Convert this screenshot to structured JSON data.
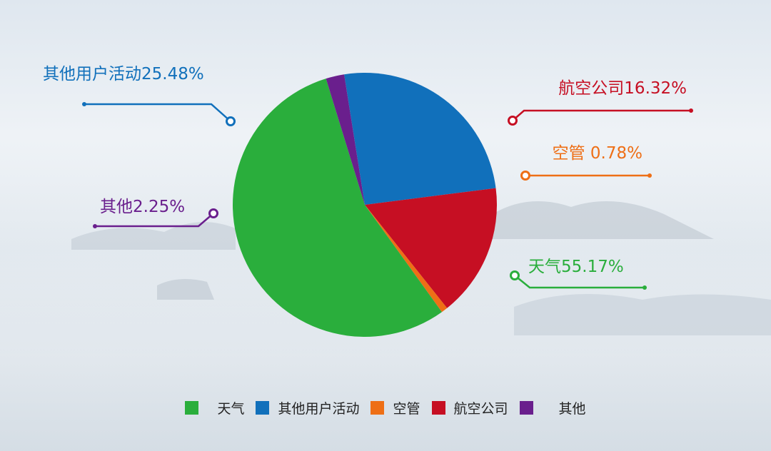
{
  "chart_data": {
    "type": "pie",
    "categories": [
      "天气",
      "其他用户活动",
      "空管",
      "航空公司",
      "其他"
    ],
    "values": [
      55.17,
      25.48,
      0.78,
      16.32,
      2.25
    ],
    "colors": [
      "#2aae3c",
      "#1170bb",
      "#ee6f16",
      "#c60f23",
      "#6a1f8d"
    ],
    "labels": [
      "天气55.17%",
      "其他用户活动25.48%",
      "空管 0.78%",
      "航空公司16.32%",
      "其他2.25%"
    ],
    "legend_position": "bottom"
  }
}
